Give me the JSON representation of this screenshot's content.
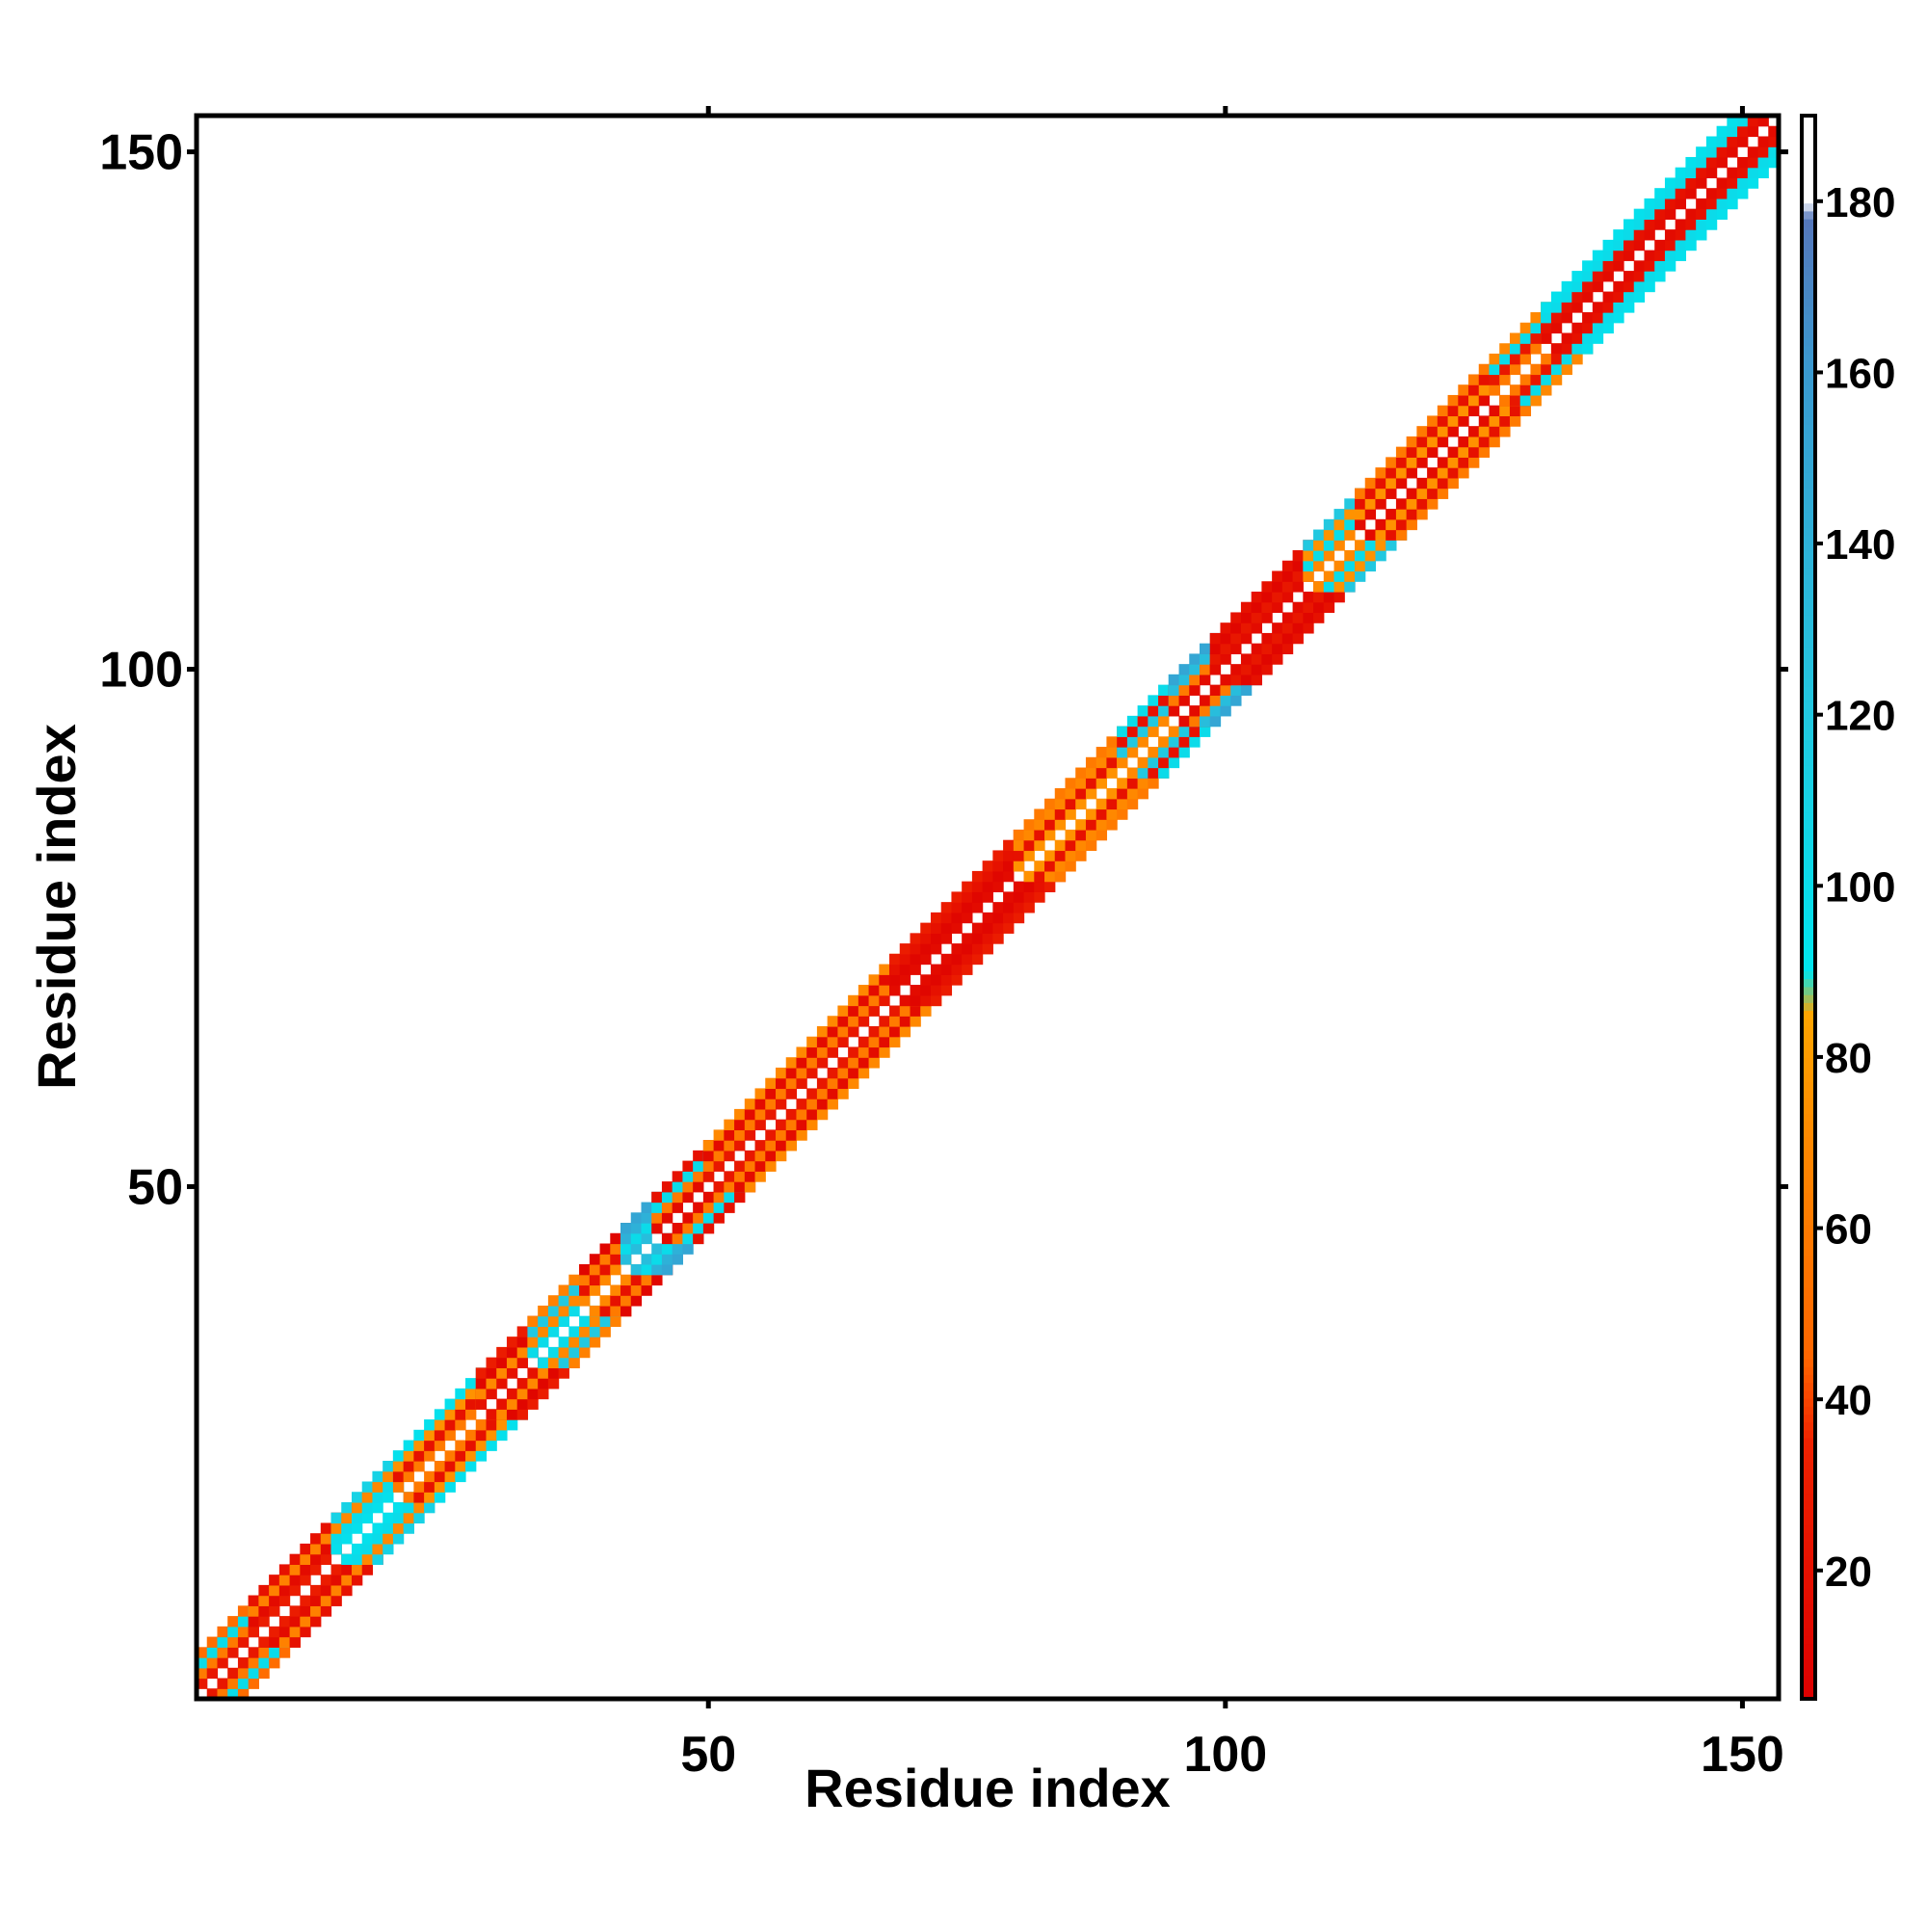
{
  "chart_data": {
    "type": "heatmap",
    "title": "",
    "xlabel": "Residue index",
    "ylabel": "Residue index",
    "xlim": [
      1,
      153
    ],
    "ylim": [
      1,
      153
    ],
    "x_ticks": [
      50,
      100,
      150
    ],
    "y_ticks": [
      50,
      100,
      150
    ],
    "x_tick_labels": [
      "50",
      "100",
      "150"
    ],
    "y_tick_labels": [
      "50",
      "100",
      "150"
    ],
    "grid": false,
    "colorbar": {
      "range": [
        5,
        190
      ],
      "ticks": [
        20,
        40,
        60,
        80,
        100,
        120,
        140,
        160,
        180
      ],
      "tick_labels": [
        "20",
        "40",
        "60",
        "80",
        "100",
        "120",
        "140",
        "160",
        "180"
      ],
      "stops": [
        {
          "value": 5,
          "color": "#dd0000"
        },
        {
          "value": 35,
          "color": "#ee2200"
        },
        {
          "value": 45,
          "color": "#ff6600"
        },
        {
          "value": 70,
          "color": "#ff8800"
        },
        {
          "value": 85,
          "color": "#ffa500"
        },
        {
          "value": 90,
          "color": "#00e5ee"
        },
        {
          "value": 120,
          "color": "#22c8e0"
        },
        {
          "value": 160,
          "color": "#3a9ad0"
        },
        {
          "value": 178,
          "color": "#5577bb"
        },
        {
          "value": 180,
          "color": "#ffffff"
        },
        {
          "value": 190,
          "color": "#ffffff"
        }
      ]
    },
    "diagonal_band": {
      "offsets": [
        1,
        2,
        3,
        4
      ],
      "segments": [
        {
          "start": 1,
          "end": 6,
          "values": [
            25,
            60,
            100,
            50
          ]
        },
        {
          "start": 6,
          "end": 14,
          "values": [
            30,
            15,
            65,
            20
          ]
        },
        {
          "start": 14,
          "end": 20,
          "values": [
            95,
            100,
            70,
            110
          ]
        },
        {
          "start": 20,
          "end": 28,
          "values": [
            60,
            20,
            75,
            95
          ]
        },
        {
          "start": 28,
          "end": 33,
          "values": [
            20,
            70,
            10,
            30
          ]
        },
        {
          "start": 33,
          "end": 38,
          "values": [
            100,
            70,
            120,
            65
          ]
        },
        {
          "start": 38,
          "end": 42,
          "values": [
            70,
            20,
            60,
            10
          ]
        },
        {
          "start": 42,
          "end": 45,
          "values": [
            130,
            100,
            140,
            150
          ]
        },
        {
          "start": 45,
          "end": 50,
          "values": [
            15,
            60,
            100,
            20
          ]
        },
        {
          "start": 50,
          "end": 68,
          "values": [
            25,
            60,
            15,
            70
          ]
        },
        {
          "start": 68,
          "end": 80,
          "values": [
            15,
            10,
            20,
            30
          ]
        },
        {
          "start": 80,
          "end": 90,
          "values": [
            75,
            20,
            70,
            60
          ]
        },
        {
          "start": 90,
          "end": 95,
          "values": [
            70,
            120,
            20,
            100
          ]
        },
        {
          "start": 95,
          "end": 99,
          "values": [
            15,
            60,
            130,
            150
          ]
        },
        {
          "start": 99,
          "end": 108,
          "values": [
            15,
            25,
            10,
            20
          ]
        },
        {
          "start": 108,
          "end": 113,
          "values": [
            70,
            100,
            75,
            120
          ]
        },
        {
          "start": 113,
          "end": 126,
          "values": [
            15,
            75,
            20,
            60
          ]
        },
        {
          "start": 126,
          "end": 131,
          "values": [
            60,
            25,
            100,
            70
          ]
        },
        {
          "start": 131,
          "end": 153,
          "values": [
            15,
            20,
            100,
            95
          ]
        }
      ]
    }
  }
}
